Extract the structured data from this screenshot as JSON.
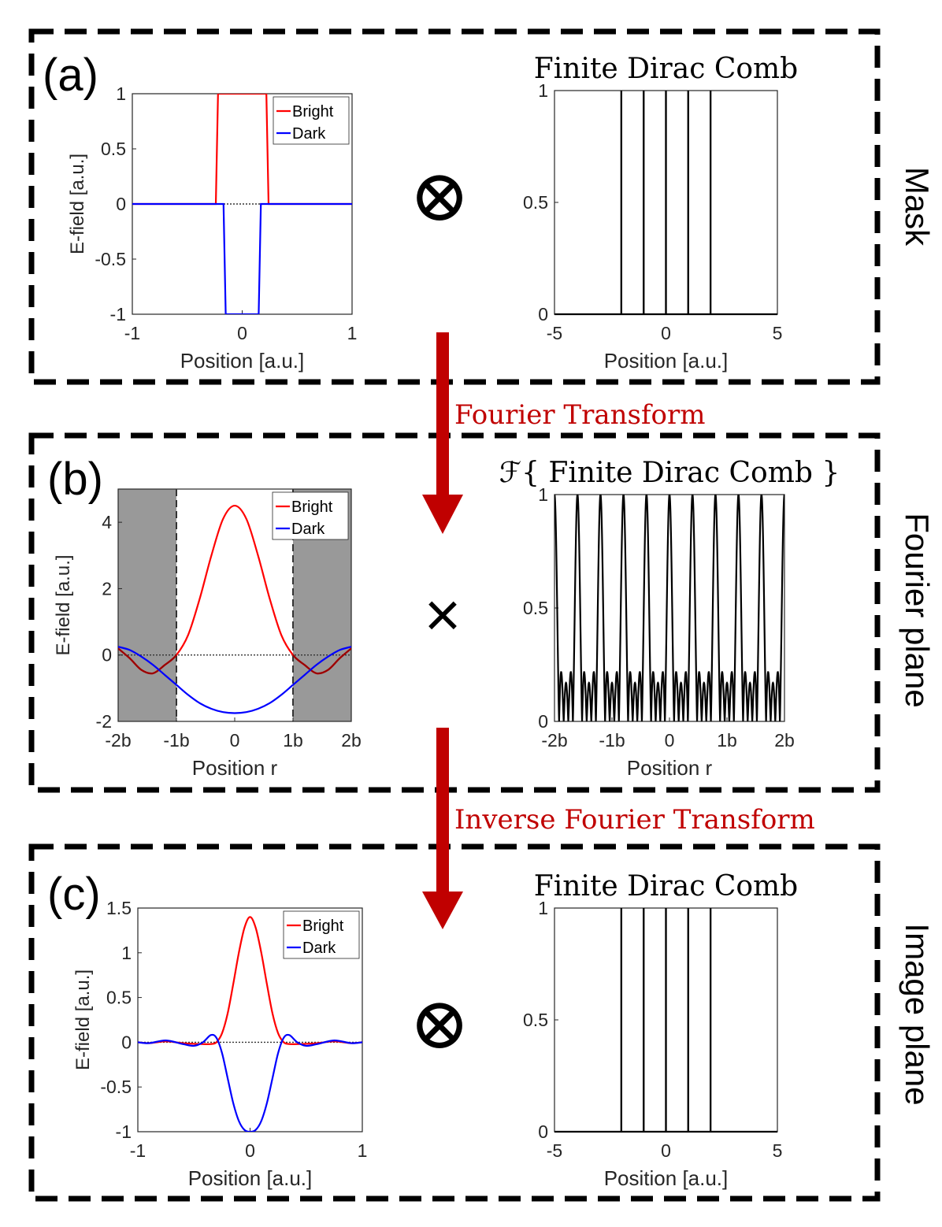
{
  "colors": {
    "bright": "#ff0000",
    "dark": "#0000ff",
    "arrow": "#c00000",
    "shade": "#999999",
    "bright_outside": "#9a0000",
    "frame": "#000000"
  },
  "arrows": {
    "forward_label": "Fourier Transform",
    "inverse_label": "Inverse Fourier Transform"
  },
  "panels": [
    {
      "id": "a",
      "label": "(a)",
      "side_label": "Mask",
      "operator": "⊗",
      "operator_name": "convolution-operator"
    },
    {
      "id": "b",
      "label": "(b)",
      "side_label": "Fourier plane",
      "operator": "×",
      "operator_name": "multiplication-operator"
    },
    {
      "id": "c",
      "label": "(c)",
      "side_label": "Image plane",
      "operator": "⊗",
      "operator_name": "convolution-operator"
    }
  ],
  "chart_data": [
    {
      "panel": "a",
      "type": "line",
      "title": "",
      "xlabel": "Position [a.u.]",
      "ylabel": "E-field [a.u.]",
      "xlim": [
        -1,
        1
      ],
      "ylim": [
        -1,
        1
      ],
      "xticks": [
        -1,
        0,
        1
      ],
      "xticklabels": [
        "-1",
        "0",
        "1"
      ],
      "yticks": [
        -1,
        -0.5,
        0,
        0.5,
        1
      ],
      "yticklabels": [
        "-1",
        "-0.5",
        "0",
        "0.5",
        "1"
      ],
      "zero_line": true,
      "legend": "top-right",
      "series": [
        {
          "name": "Bright",
          "color": "#ff0000",
          "x": [
            -1,
            -0.24,
            -0.22,
            0.22,
            0.24,
            1
          ],
          "y": [
            0,
            0,
            1,
            1,
            0,
            0
          ]
        },
        {
          "name": "Dark",
          "color": "#0000ff",
          "x": [
            -1,
            -0.17,
            -0.15,
            0.15,
            0.17,
            1
          ],
          "y": [
            0,
            0,
            -1,
            -1,
            0,
            0
          ]
        }
      ]
    },
    {
      "panel": "a",
      "type": "line",
      "title": "Finite Dirac Comb",
      "xlabel": "Position [a.u.]",
      "ylabel": "",
      "xlim": [
        -5,
        5
      ],
      "ylim": [
        0,
        1
      ],
      "xticks": [
        -5,
        0,
        5
      ],
      "xticklabels": [
        "-5",
        "0",
        "5"
      ],
      "yticks": [
        0,
        0.5,
        1
      ],
      "yticklabels": [
        "0",
        "0.5",
        "1"
      ],
      "spikes": [
        -2,
        -1,
        0,
        1,
        2
      ],
      "spike_height": 1
    },
    {
      "panel": "b",
      "type": "line",
      "title": "",
      "xlabel": "Position r",
      "ylabel": "E-field [a.u.]",
      "xlim": [
        -2,
        2
      ],
      "ylim": [
        -2,
        5
      ],
      "xticks": [
        -2,
        -1,
        0,
        1,
        2
      ],
      "xticklabels": [
        "-2b",
        "-1b",
        "0",
        "1b",
        "2b"
      ],
      "yticks": [
        -2,
        0,
        2,
        4
      ],
      "yticklabels": [
        "-2",
        "0",
        "2",
        "4"
      ],
      "zero_line": true,
      "legend": "top-right",
      "shaded_regions": [
        [
          -2,
          -1
        ],
        [
          1,
          2
        ]
      ],
      "cutoff_lines": [
        -1,
        1
      ],
      "series": [
        {
          "name": "Bright",
          "color": "#ff0000",
          "x": [
            -2,
            -1.8,
            -1.6,
            -1.4,
            -1.2,
            -1.0,
            -0.8,
            -0.6,
            -0.4,
            -0.2,
            0,
            0.2,
            0.4,
            0.6,
            0.8,
            1.0,
            1.2,
            1.4,
            1.6,
            1.8,
            2
          ],
          "y": [
            0.2,
            -0.1,
            -0.45,
            -0.55,
            -0.3,
            0.0,
            0.6,
            1.7,
            3.0,
            4.1,
            4.5,
            4.1,
            3.0,
            1.7,
            0.6,
            0.0,
            -0.3,
            -0.55,
            -0.45,
            -0.1,
            0.2
          ]
        },
        {
          "name": "Dark",
          "color": "#0000ff",
          "x": [
            -2,
            -1.8,
            -1.6,
            -1.4,
            -1.2,
            -1.0,
            -0.8,
            -0.6,
            -0.4,
            -0.2,
            0,
            0.2,
            0.4,
            0.6,
            0.8,
            1.0,
            1.2,
            1.4,
            1.6,
            1.8,
            2
          ],
          "y": [
            0.25,
            0.15,
            -0.05,
            -0.3,
            -0.6,
            -0.9,
            -1.2,
            -1.45,
            -1.62,
            -1.72,
            -1.75,
            -1.72,
            -1.62,
            -1.45,
            -1.2,
            -0.9,
            -0.6,
            -0.3,
            -0.05,
            0.15,
            0.25
          ]
        }
      ]
    },
    {
      "panel": "b",
      "type": "line",
      "title": "ℱ{ Finite Dirac Comb }",
      "xlabel": "Position r",
      "ylabel": "",
      "xlim": [
        -2,
        2
      ],
      "ylim": [
        0,
        1
      ],
      "xticks": [
        -2,
        -1,
        0,
        1,
        2
      ],
      "xticklabels": [
        "-2b",
        "-1b",
        "0",
        "1b",
        "2b"
      ],
      "yticks": [
        0,
        0.5,
        1
      ],
      "yticklabels": [
        "0",
        "0.5",
        "1"
      ],
      "function": "dirichlet",
      "comb_teeth": 5,
      "peak_spacing": 0.4,
      "peak_height": 1
    },
    {
      "panel": "c",
      "type": "line",
      "title": "",
      "xlabel": "Position [a.u.]",
      "ylabel": "E-field [a.u.]",
      "xlim": [
        -1,
        1
      ],
      "ylim": [
        -1,
        1.5
      ],
      "xticks": [
        -1,
        0,
        1
      ],
      "xticklabels": [
        "-1",
        "0",
        "1"
      ],
      "yticks": [
        -1,
        -0.5,
        0,
        0.5,
        1,
        1.5
      ],
      "yticklabels": [
        "-1",
        "-0.5",
        "0",
        "0.5",
        "1",
        "1.5"
      ],
      "zero_line": true,
      "legend": "top-right",
      "series": [
        {
          "name": "Bright",
          "color": "#ff0000",
          "x": [
            -1,
            -0.9,
            -0.75,
            -0.6,
            -0.45,
            -0.35,
            -0.3,
            -0.25,
            -0.2,
            -0.15,
            -0.1,
            -0.05,
            0,
            0.05,
            0.1,
            0.15,
            0.2,
            0.25,
            0.3,
            0.35,
            0.45,
            0.6,
            0.75,
            0.9,
            1
          ],
          "y": [
            0,
            -0.01,
            0.01,
            -0.01,
            -0.02,
            -0.02,
            0.0,
            0.1,
            0.32,
            0.65,
            1.0,
            1.28,
            1.4,
            1.28,
            1.0,
            0.65,
            0.32,
            0.1,
            0.0,
            -0.02,
            -0.02,
            -0.01,
            0.01,
            -0.01,
            0
          ]
        },
        {
          "name": "Dark",
          "color": "#0000ff",
          "x": [
            -1,
            -0.9,
            -0.75,
            -0.6,
            -0.5,
            -0.42,
            -0.35,
            -0.3,
            -0.25,
            -0.2,
            -0.15,
            -0.1,
            -0.05,
            0,
            0.05,
            0.1,
            0.15,
            0.2,
            0.25,
            0.3,
            0.35,
            0.42,
            0.5,
            0.6,
            0.75,
            0.9,
            1
          ],
          "y": [
            0,
            -0.01,
            0.02,
            -0.02,
            -0.04,
            0.0,
            0.08,
            0.05,
            -0.12,
            -0.4,
            -0.68,
            -0.88,
            -0.98,
            -1.0,
            -0.98,
            -0.88,
            -0.68,
            -0.4,
            -0.12,
            0.05,
            0.08,
            0.0,
            -0.04,
            -0.02,
            0.02,
            -0.01,
            0
          ]
        }
      ]
    },
    {
      "panel": "c",
      "type": "line",
      "title": "Finite Dirac Comb",
      "xlabel": "Position [a.u.]",
      "ylabel": "",
      "xlim": [
        -5,
        5
      ],
      "ylim": [
        0,
        1
      ],
      "xticks": [
        -5,
        0,
        5
      ],
      "xticklabels": [
        "-5",
        "0",
        "5"
      ],
      "yticks": [
        0,
        0.5,
        1
      ],
      "yticklabels": [
        "0",
        "0.5",
        "1"
      ],
      "spikes": [
        -2,
        -1,
        0,
        1,
        2
      ],
      "spike_height": 1
    }
  ]
}
